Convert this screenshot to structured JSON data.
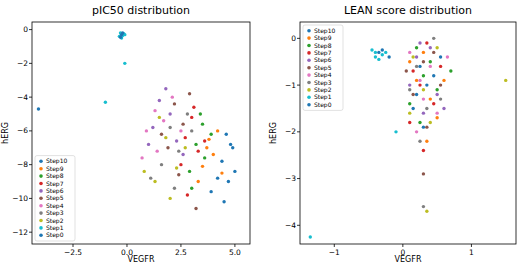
{
  "chart_data": [
    {
      "type": "scatter",
      "title": "pIC50 distribution",
      "x_label": "VEGFR",
      "y_label": "hERG",
      "xlim": [
        -4.4,
        5.7
      ],
      "ylim": [
        -12.7,
        0.45
      ],
      "xticks": [
        {
          "value": -2.5,
          "label": "−2.5"
        },
        {
          "value": 0,
          "label": "0.0"
        },
        {
          "value": 2.5,
          "label": "2.5"
        },
        {
          "value": 5,
          "label": "5.0"
        }
      ],
      "yticks": [
        0,
        {
          "value": -2,
          "label": "−2"
        },
        {
          "value": -4,
          "label": "−4"
        },
        {
          "value": -6,
          "label": "−6"
        },
        {
          "value": -8,
          "label": "−8"
        },
        {
          "value": -10,
          "label": "−10"
        },
        {
          "value": -12,
          "label": "−12"
        }
      ],
      "legend": "lower left",
      "series": [
        {
          "name": "Step10",
          "color": "#1f77b4",
          "x": [
            4.6,
            4.9,
            4.4,
            5.0,
            4.7,
            4.2,
            4.8,
            3.9,
            4.5
          ],
          "values": [
            -6.2,
            -7.0,
            -7.8,
            -8.4,
            -9.0,
            -8.8,
            -6.8,
            -9.6,
            -10.2
          ]
        },
        {
          "name": "Step9",
          "color": "#ff7f0e",
          "x": [
            3.8,
            4.0,
            3.5,
            4.2,
            3.3,
            3.7,
            4.4
          ],
          "values": [
            -6.5,
            -7.4,
            -8.1,
            -6.0,
            -9.0,
            -7.0,
            -8.5
          ]
        },
        {
          "name": "Step8",
          "color": "#2ca02c",
          "x": [
            3.5,
            3.2,
            3.6,
            2.9,
            3.9,
            3.0,
            3.4
          ],
          "values": [
            -5.6,
            -6.8,
            -7.6,
            -8.4,
            -6.2,
            -9.4,
            -5.0
          ]
        },
        {
          "name": "Step7",
          "color": "#d62728",
          "x": [
            3.0,
            2.7,
            3.3,
            2.5,
            3.1,
            2.8,
            3.6
          ],
          "values": [
            -5.2,
            -6.4,
            -7.2,
            -8.0,
            -4.6,
            -9.8,
            -6.6
          ]
        },
        {
          "name": "Step6",
          "color": "#9467bd",
          "x": [
            1.5,
            2.0,
            1.2,
            2.3,
            1.8,
            2.6,
            1.0
          ],
          "values": [
            -4.2,
            -5.0,
            -5.8,
            -6.6,
            -3.5,
            -7.4,
            -6.8
          ]
        },
        {
          "name": "Step5",
          "color": "#8c564b",
          "x": [
            2.2,
            2.6,
            1.9,
            2.9,
            2.4,
            1.6,
            3.2
          ],
          "values": [
            -4.4,
            -5.6,
            -7.0,
            -3.8,
            -8.6,
            -6.2,
            -10.6
          ]
        },
        {
          "name": "Step4",
          "color": "#e377c2",
          "x": [
            1.3,
            1.7,
            0.9,
            2.1,
            1.4,
            2.5,
            0.7
          ],
          "values": [
            -4.8,
            -5.4,
            -6.0,
            -4.0,
            -7.2,
            -6.0,
            -7.6
          ]
        },
        {
          "name": "Step3",
          "color": "#7f7f7f",
          "x": [
            2.0,
            2.4,
            1.6,
            2.8,
            1.1,
            2.2,
            3.0
          ],
          "values": [
            -5.8,
            -7.2,
            -8.0,
            -5.0,
            -8.8,
            -9.4,
            -6.0
          ]
        },
        {
          "name": "Step2",
          "color": "#bcbd22",
          "x": [
            1.8,
            2.3,
            1.3,
            2.7,
            0.8,
            2.0,
            1.5
          ],
          "values": [
            -6.4,
            -8.2,
            -9.0,
            -7.0,
            -8.4,
            -10.0,
            -5.2
          ]
        },
        {
          "name": "Step1",
          "color": "#17becf",
          "x": [
            -0.3,
            -0.2,
            -0.35,
            -0.15,
            -0.25,
            -0.1,
            -1.0,
            -0.1
          ],
          "values": [
            -0.2,
            -0.35,
            -0.4,
            -0.25,
            -0.5,
            -0.3,
            -4.3,
            -2.0
          ]
        },
        {
          "name": "Step0",
          "color": "#1f77b4",
          "x": [
            -0.25,
            -0.3,
            -4.1,
            -0.2
          ],
          "values": [
            -0.3,
            -0.45,
            -4.7,
            -0.2
          ]
        }
      ]
    },
    {
      "type": "scatter",
      "title": "LEAN score distribution",
      "x_label": "VEGFR",
      "y_label": "hERG",
      "xlim": [
        -1.5,
        1.65
      ],
      "ylim": [
        -4.4,
        0.35
      ],
      "xticks": [
        {
          "value": -1,
          "label": "−1"
        },
        0,
        1
      ],
      "yticks": [
        0,
        {
          "value": -1,
          "label": "−1"
        },
        {
          "value": -2,
          "label": "−2"
        },
        {
          "value": -3,
          "label": "−3"
        },
        {
          "value": -4,
          "label": "−4"
        }
      ],
      "legend": "upper left",
      "series": [
        {
          "name": "Step10",
          "color": "#1f77b4",
          "x": [
            0.25,
            0.35,
            0.15,
            0.45,
            0.3,
            0.55,
            0.2
          ],
          "values": [
            -0.6,
            -1.0,
            -1.5,
            -0.8,
            -1.9,
            -0.4,
            -1.2
          ]
        },
        {
          "name": "Step9",
          "color": "#ff7f0e",
          "x": [
            0.3,
            0.4,
            0.2,
            0.5,
            0.1,
            0.6,
            0.35
          ],
          "values": [
            -0.3,
            -1.3,
            -0.9,
            -1.7,
            -0.5,
            -0.9,
            -2.2
          ]
        },
        {
          "name": "Step8",
          "color": "#2ca02c",
          "x": [
            0.2,
            0.3,
            0.5,
            0.1,
            0.4,
            0.25,
            0.7
          ],
          "values": [
            -0.2,
            -0.8,
            -1.1,
            -1.4,
            -0.5,
            -1.8,
            -0.7
          ]
        },
        {
          "name": "Step7",
          "color": "#d62728",
          "x": [
            0.35,
            0.15,
            0.45,
            0.25,
            0.55,
            0.3,
            0.1
          ],
          "values": [
            -0.1,
            -0.7,
            -1.4,
            -1.0,
            -0.6,
            -2.4,
            -1.8
          ]
        },
        {
          "name": "Step6",
          "color": "#9467bd",
          "x": [
            0.2,
            0.4,
            0.3,
            0.1,
            0.5,
            0.25,
            0.6
          ],
          "values": [
            -0.4,
            -0.2,
            -1.6,
            -1.0,
            -1.2,
            -0.1,
            -1.5
          ]
        },
        {
          "name": "Step5",
          "color": "#8c564b",
          "x": [
            0.3,
            0.15,
            0.45,
            0.35,
            0.05,
            0.55,
            0.3
          ],
          "values": [
            -0.5,
            -1.2,
            -0.3,
            -1.9,
            -0.7,
            -1.0,
            -2.9
          ]
        },
        {
          "name": "Step4",
          "color": "#e377c2",
          "x": [
            0.25,
            0.4,
            0.1,
            0.5,
            0.3,
            0.2,
            0.65
          ],
          "values": [
            -0.9,
            -0.6,
            -0.3,
            -1.6,
            -1.3,
            -2.0,
            -0.4
          ]
        },
        {
          "name": "Step3",
          "color": "#7f7f7f",
          "x": [
            0.2,
            0.35,
            0.45,
            0.1,
            0.3,
            0.55,
            0.25
          ],
          "values": [
            -0.6,
            -1.5,
            0.0,
            -1.1,
            -3.6,
            -1.3,
            -2.2
          ]
        },
        {
          "name": "Step2",
          "color": "#bcbd22",
          "x": [
            0.3,
            0.15,
            0.4,
            0.5,
            0.35,
            0.1,
            1.5
          ],
          "values": [
            -1.1,
            -0.4,
            -1.8,
            -0.2,
            -3.7,
            -1.6,
            -0.9
          ]
        },
        {
          "name": "Step1",
          "color": "#17becf",
          "x": [
            -0.4,
            -0.3,
            -0.45,
            -0.35,
            -0.25,
            -0.4,
            -1.35,
            -0.1
          ],
          "values": [
            -0.3,
            -0.35,
            -0.25,
            -0.45,
            -0.3,
            -0.4,
            -4.25,
            -2.0
          ]
        },
        {
          "name": "Step0",
          "color": "#1f77b4",
          "x": [
            -0.3,
            -0.35,
            -0.2
          ],
          "values": [
            -0.25,
            -0.3,
            -0.4
          ]
        }
      ]
    }
  ]
}
